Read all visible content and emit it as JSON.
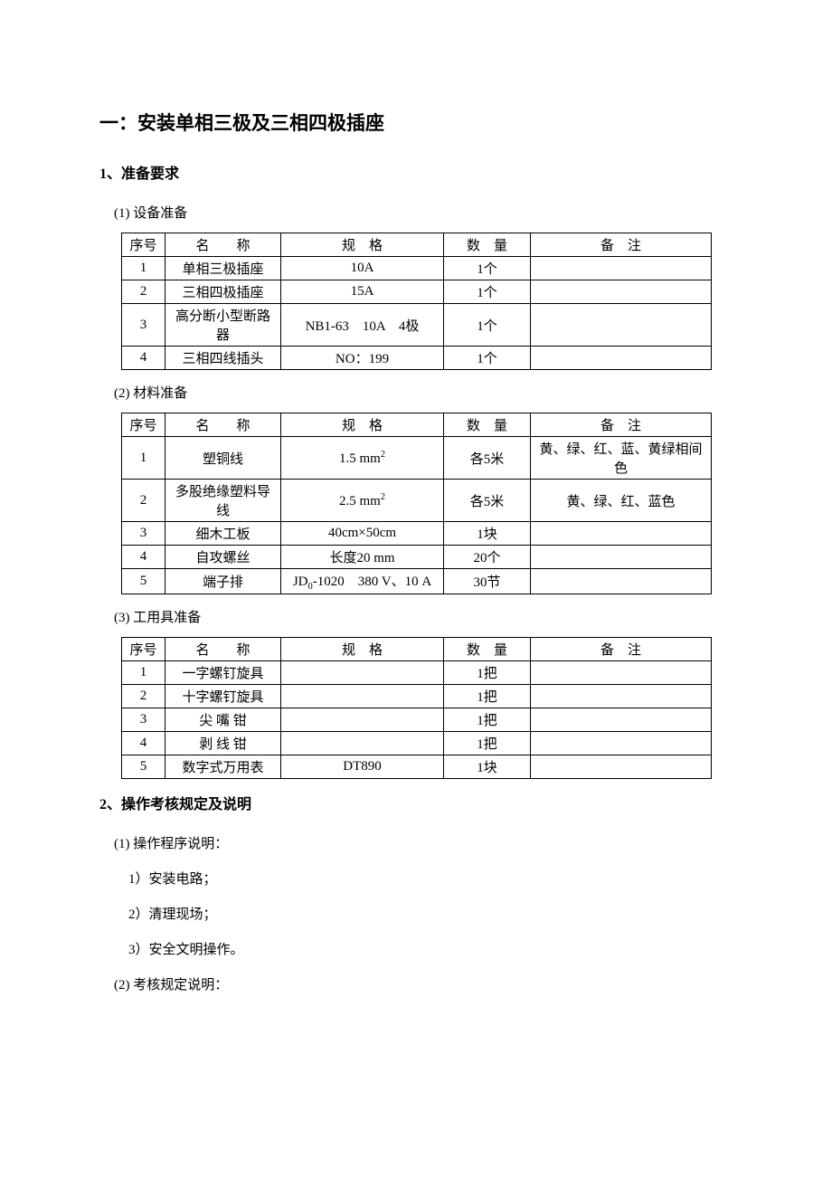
{
  "title": "一：安装单相三极及三相四极插座",
  "section1": {
    "heading": "1、准备要求",
    "sub1": {
      "label": "(1) 设备准备",
      "table": {
        "headers": {
          "seq": "序号",
          "name": "名　　称",
          "spec": "规　格",
          "qty": "数　量",
          "note": "备　注"
        },
        "rows": [
          {
            "seq": "1",
            "name": "单相三极插座",
            "spec": "10A",
            "qty": "1个",
            "note": ""
          },
          {
            "seq": "2",
            "name": "三相四极插座",
            "spec": "15A",
            "qty": "1个",
            "note": ""
          },
          {
            "seq": "3",
            "name": "高分断小型断路器",
            "spec": "NB1-63　10A　4极",
            "qty": "1个",
            "note": ""
          },
          {
            "seq": "4",
            "name": "三相四线插头",
            "spec": "NO：199",
            "qty": "1个",
            "note": ""
          }
        ]
      }
    },
    "sub2": {
      "label": "(2) 材料准备",
      "table": {
        "headers": {
          "seq": "序号",
          "name": "名　　称",
          "spec": "规　格",
          "qty": "数　量",
          "note": "备　注"
        },
        "rows": [
          {
            "seq": "1",
            "name": "塑铜线",
            "spec_html": "1.5 mm<sup>2</sup>",
            "qty": "各5米",
            "note": "黄、绿、红、蓝、黄绿相间色"
          },
          {
            "seq": "2",
            "name": "多股绝缘塑料导线",
            "spec_html": "2.5 mm<sup>2</sup>",
            "qty": "各5米",
            "note": "黄、绿、红、蓝色"
          },
          {
            "seq": "3",
            "name": "细木工板",
            "spec": "40cm×50cm",
            "qty": "1块",
            "note": ""
          },
          {
            "seq": "4",
            "name": "自攻螺丝",
            "spec": "长度20 mm",
            "qty": "20个",
            "note": ""
          },
          {
            "seq": "5",
            "name": "端子排",
            "spec_html": "JD<sub>0</sub>-1020　380 V、10 A",
            "qty": "30节",
            "note": ""
          }
        ]
      }
    },
    "sub3": {
      "label": "(3) 工用具准备",
      "table": {
        "headers": {
          "seq": "序号",
          "name": "名　　称",
          "spec": "规　格",
          "qty": "数　量",
          "note": "备　注"
        },
        "rows": [
          {
            "seq": "1",
            "name": "一字螺钉旋具",
            "spec": "",
            "qty": "1把",
            "note": ""
          },
          {
            "seq": "2",
            "name": "十字螺钉旋具",
            "spec": "",
            "qty": "1把",
            "note": ""
          },
          {
            "seq": "3",
            "name": "尖 嘴 钳",
            "spec": "",
            "qty": "1把",
            "note": ""
          },
          {
            "seq": "4",
            "name": "剥 线 钳",
            "spec": "",
            "qty": "1把",
            "note": ""
          },
          {
            "seq": "5",
            "name": "数字式万用表",
            "spec": "DT890",
            "qty": "1块",
            "note": ""
          }
        ]
      }
    }
  },
  "section2": {
    "heading": "2、操作考核规定及说明",
    "items": [
      "(1) 操作程序说明：",
      "1）安装电路；",
      "2）清理现场；",
      "3）安全文明操作。",
      "(2) 考核规定说明："
    ]
  },
  "colWidths": {
    "seq": 48,
    "name": 128,
    "spec": 180,
    "qty": 96,
    "note": 200
  }
}
